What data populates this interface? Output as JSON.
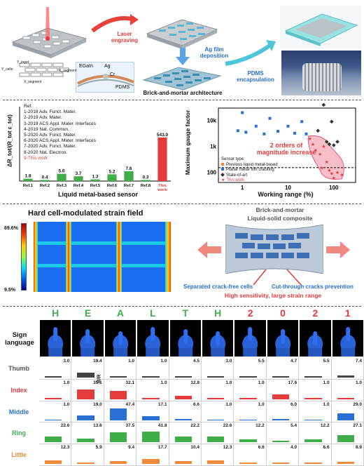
{
  "section_a": {
    "laser_label": "Laser\nengraving",
    "ag_label": "Ag film\ndeposition",
    "pdms_label": "PDMS\nencapsulation",
    "brick_label": "Brick-and-mortar architecture",
    "inset_labels": [
      "EGaIn",
      "Ag",
      "Cr",
      "PDMS"
    ],
    "axis_labels": [
      "Y_cells",
      "Y_ingot",
      "X_segment",
      "X_segment"
    ]
  },
  "chart_left": {
    "ylabel": "ΔR_tot/(R_tot ε_tot)",
    "xlabel": "Liquid metal-based sensor",
    "refs_header": "Ref.",
    "refs": [
      "1-2018 Adv. Funct. Mater.",
      "2-2019 Adv. Mater.",
      "3-2019 ACS Appl. Mater. Interfaces",
      "4-2019 Nat. Commun.",
      "5-2020 Adv. Funct. Mater.",
      "6-2020 ACS Appl. Mater. Interfaces",
      "7-2020 Adv. Funct. Mater.",
      "8-2020 Nat. Electron.",
      "9-This work"
    ],
    "chart_data": {
      "type": "bar",
      "categories": [
        "Ref.1",
        "Ref.2",
        "Ref.3",
        "Ref.4",
        "Ref.5",
        "Ref.6",
        "Ref.7",
        "Ref.8",
        "This work"
      ],
      "values": [
        1.8,
        0.4,
        5.6,
        3.7,
        1.3,
        5.2,
        7.6,
        0.3,
        543.0
      ],
      "value_labels": [
        "1.8",
        "0.4",
        "5.6",
        "3.7",
        "1.3",
        "5.2",
        "7.6",
        "0.3",
        "543.0"
      ],
      "colors": {
        "ref": "#3fae49",
        "this": "#e43b3b"
      }
    }
  },
  "chart_right": {
    "ylabel": "Maximum gauge factor",
    "xlabel": "Working range (%)",
    "yticks": [
      "10k",
      "1k",
      "100"
    ],
    "xticks": [
      "1",
      "10",
      "100"
    ],
    "annotation": "2 orders of\nmagnitude increase",
    "legend_title": "Sensor type:",
    "legend": [
      {
        "label": "Previous liquid metal-based",
        "color": "#f08a3c",
        "marker": "square"
      },
      {
        "label": "Planar metal film cracking",
        "color": "#2a6fd4",
        "marker": "square"
      },
      {
        "label": "State-of-art",
        "color": "#333333",
        "marker": "diamond"
      },
      {
        "label": "This work",
        "color": "#e43b3b",
        "marker": "star"
      }
    ],
    "chart_data": {
      "type": "scatter",
      "xlim": [
        0.3,
        300
      ],
      "ylim": [
        40,
        30000
      ],
      "log_x": true,
      "log_y": true,
      "reference_line_y": 150,
      "series": [
        {
          "name": "Planar metal film cracking",
          "color": "#2a6fd4",
          "points": [
            [
              0.8,
              4000
            ],
            [
              1.0,
              20000
            ],
            [
              1.2,
              3500
            ],
            [
              2.0,
              6000
            ],
            [
              3.0,
              3000
            ],
            [
              4.0,
              12000
            ],
            [
              6.0,
              3800
            ],
            [
              10.0,
              6000
            ],
            [
              14.0,
              3200
            ],
            [
              20.0,
              9000
            ],
            [
              25.0,
              3000
            ]
          ]
        },
        {
          "name": "State-of-art",
          "color": "#333333",
          "points": [
            [
              45,
              4000
            ],
            [
              60,
              40000
            ],
            [
              70,
              1500
            ],
            [
              80,
              1200
            ],
            [
              90,
              9000
            ],
            [
              100,
              1100
            ],
            [
              120,
              1500
            ]
          ]
        },
        {
          "name": "This work",
          "color": "#e43b3b",
          "points": [
            [
              30,
              2000
            ],
            [
              35,
              1200
            ],
            [
              40,
              700
            ],
            [
              50,
              500
            ],
            [
              55,
              150
            ],
            [
              60,
              1000
            ],
            [
              70,
              250
            ],
            [
              80,
              120
            ],
            [
              90,
              90
            ],
            [
              100,
              60
            ],
            [
              120,
              100
            ],
            [
              150,
              80
            ]
          ]
        }
      ]
    }
  },
  "section_c": {
    "title": "Hard cell-modulated strain field",
    "scale_max": "69.6%",
    "scale_min": "9.5%",
    "composite_title1": "Brick-and-mortar",
    "composite_title2": "Liquid-solid composite",
    "crack_free": "Separated crack-free cells",
    "cut_through": "Cut-through cracks prevention",
    "summary": "High sensitivity, large strain range"
  },
  "section_d": {
    "letters": [
      "H",
      "E",
      "A",
      "L",
      "T",
      "H",
      "2",
      "0",
      "2",
      "1"
    ],
    "letter_colors": [
      "#3fae49",
      "#3fae49",
      "#3fae49",
      "#3fae49",
      "#3fae49",
      "#3fae49",
      "#e43b3b",
      "#e43b3b",
      "#e43b3b",
      "#e43b3b"
    ],
    "sign_label": "Sign\nlanguage",
    "r_axis": "R/R",
    "fingers": [
      {
        "name": "Thumb",
        "color": "#555555",
        "bar_color": "#444444",
        "values": [
          3.0,
          19.4,
          1.0,
          1.0,
          4.5,
          3.0,
          5.5,
          4.7,
          5.5,
          7.4
        ],
        "labels": [
          "3.0",
          "19.4",
          "1.0",
          "1.0",
          "4.5",
          "3.0",
          "5.5",
          "4.7",
          "5.5",
          "7.4"
        ]
      },
      {
        "name": "Index",
        "color": "#e43b3b",
        "bar_color": "#e43b3b",
        "values": [
          1.0,
          35.1,
          32.1,
          1.0,
          12.8,
          1.0,
          1.0,
          17.6,
          1.0,
          1.0
        ],
        "labels": [
          "1.0",
          "35.1",
          "32.1",
          "1.0",
          "12.8",
          "1.0",
          "1.0",
          "17.6",
          "1.0",
          "1.0"
        ]
      },
      {
        "name": "Middle",
        "color": "#2a6fd4",
        "bar_color": "#2a6fd4",
        "values": [
          1.0,
          19.0,
          47.4,
          17.1,
          6.6,
          1.0,
          1.0,
          6.0,
          1.0,
          29.0
        ],
        "labels": [
          "1.0",
          "19.0",
          "47.4",
          "17.1",
          "6.6",
          "1.0",
          "1.0",
          "6.0",
          "1.0",
          "29.0"
        ]
      },
      {
        "name": "Ring",
        "color": "#3fae49",
        "bar_color": "#3fae49",
        "values": [
          22.6,
          13.6,
          37.5,
          41.8,
          22.2,
          22.6,
          12.2,
          5.4,
          12.2,
          27.1
        ],
        "labels": [
          "22.6",
          "13.6",
          "37.5",
          "41.8",
          "22.2",
          "22.6",
          "12.2",
          "5.4",
          "12.2",
          "27.1"
        ]
      },
      {
        "name": "Little",
        "color": "#f08a3c",
        "bar_color": "#f08a3c",
        "values": [
          12.3,
          5.9,
          9.4,
          17.7,
          10.4,
          12.3,
          6.6,
          4.0,
          6.6,
          8.9
        ],
        "labels": [
          "12.3",
          "5.9",
          "9.4",
          "17.7",
          "10.4",
          "12.3",
          "6.6",
          "4.0",
          "6.6",
          "8.9"
        ]
      }
    ]
  }
}
